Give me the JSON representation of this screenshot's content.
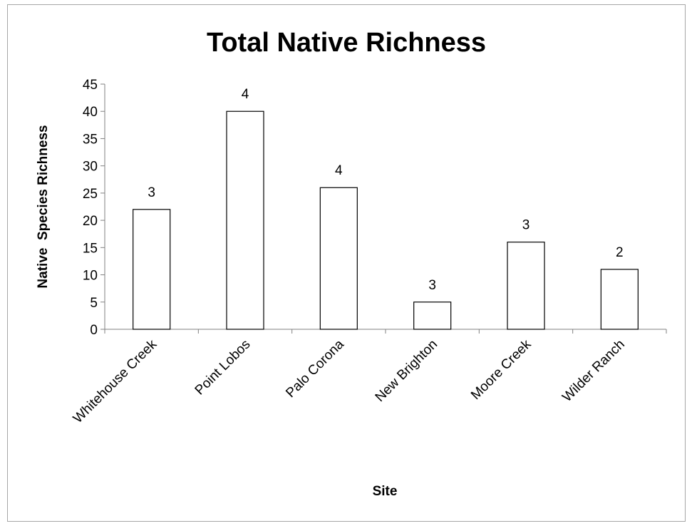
{
  "chart_data": {
    "type": "bar",
    "title": "Total Native Richness",
    "xlabel": "Site",
    "ylabel": "Native  Species Richness",
    "categories": [
      "Whitehouse Creek",
      "Point Lobos",
      "Palo Corona",
      "New Brighton",
      "Moore Creek",
      "Wilder Ranch"
    ],
    "values": [
      22,
      40,
      26,
      5,
      16,
      11
    ],
    "data_labels": [
      "3",
      "4",
      "4",
      "3",
      "3",
      "2"
    ],
    "ylim": [
      0,
      45
    ],
    "yticks": [
      0,
      5,
      10,
      15,
      20,
      25,
      30,
      35,
      40,
      45
    ],
    "grid": false,
    "legend": "none",
    "bar_fill": "#ffffff",
    "bar_stroke": "#000000",
    "axis_color": "#808080"
  }
}
